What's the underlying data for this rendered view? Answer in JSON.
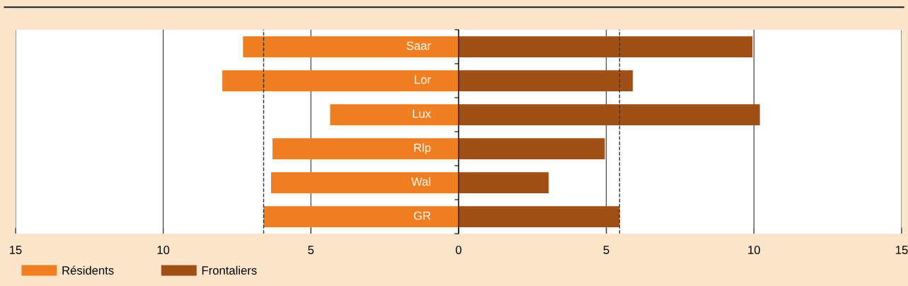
{
  "chart_data": {
    "type": "bar",
    "orientation": "horizontal",
    "stacked": true,
    "categories": [
      "Saar",
      "Lor",
      "Lux",
      "Rlp",
      "Wal",
      "GR"
    ],
    "series": [
      {
        "name": "Résidents",
        "color": "#f07f22",
        "values": [
          -7.3,
          -8.0,
          -4.35,
          -6.3,
          -6.35,
          -6.6
        ]
      },
      {
        "name": "Frontaliers",
        "color": "#a05016",
        "values": [
          9.95,
          5.9,
          10.2,
          4.95,
          3.05,
          5.45
        ]
      }
    ],
    "xlim": [
      -15,
      15
    ],
    "xticks": [
      {
        "value": -15,
        "label": "15"
      },
      {
        "value": -10,
        "label": "10"
      },
      {
        "value": -5,
        "label": "5"
      },
      0,
      5,
      10,
      15
    ],
    "ref_lines": [
      {
        "axis": "x",
        "value": -6.6,
        "color": "#333333",
        "line_style": "dashed"
      },
      {
        "axis": "x",
        "value": 5.45,
        "color": "#333333",
        "line_style": "dashed"
      }
    ],
    "grid": "x",
    "legend": "bottom left"
  }
}
